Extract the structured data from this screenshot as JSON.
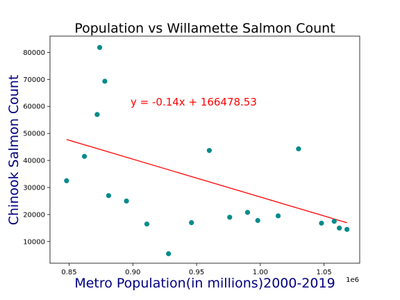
{
  "chart_data": {
    "type": "scatter",
    "title": "Population vs Willamette Salmon Count",
    "xlabel": "Metro Population(in millions)2000-2019",
    "ylabel": "Chinook Salmon Count",
    "x_offset_label": "1e6",
    "annotation": "y = -0.14x + 166478.53",
    "xlim": [
      835000,
      1078000
    ],
    "ylim": [
      2000,
      86000
    ],
    "x_ticks": [
      850000,
      900000,
      950000,
      1000000,
      1050000
    ],
    "x_tick_labels": [
      "0.85",
      "0.90",
      "0.95",
      "1.00",
      "1.05"
    ],
    "y_ticks": [
      10000,
      20000,
      30000,
      40000,
      50000,
      60000,
      70000,
      80000
    ],
    "y_tick_labels": [
      "10000",
      "20000",
      "30000",
      "40000",
      "50000",
      "60000",
      "70000",
      "80000"
    ],
    "series": [
      {
        "x": [
          848000,
          862000,
          872000,
          874000,
          878000,
          881000,
          895000,
          911000,
          928000,
          946000,
          960000,
          976000,
          990000,
          998000,
          1014000,
          1030000,
          1048000,
          1058000,
          1062000,
          1068000
        ],
        "y": [
          32500,
          41500,
          57000,
          81800,
          69300,
          27000,
          25000,
          16500,
          5500,
          17000,
          43700,
          19000,
          20800,
          17800,
          19500,
          44300,
          16800,
          17500,
          15000,
          14500
        ]
      }
    ],
    "regression": {
      "slope": -0.14,
      "intercept": 166478.53,
      "x_range": [
        848000,
        1068000
      ]
    },
    "colors": {
      "points": "#008b8b",
      "line": "#ff0000",
      "annotation": "#ff0000",
      "labels": "#000080"
    },
    "grid": false
  }
}
